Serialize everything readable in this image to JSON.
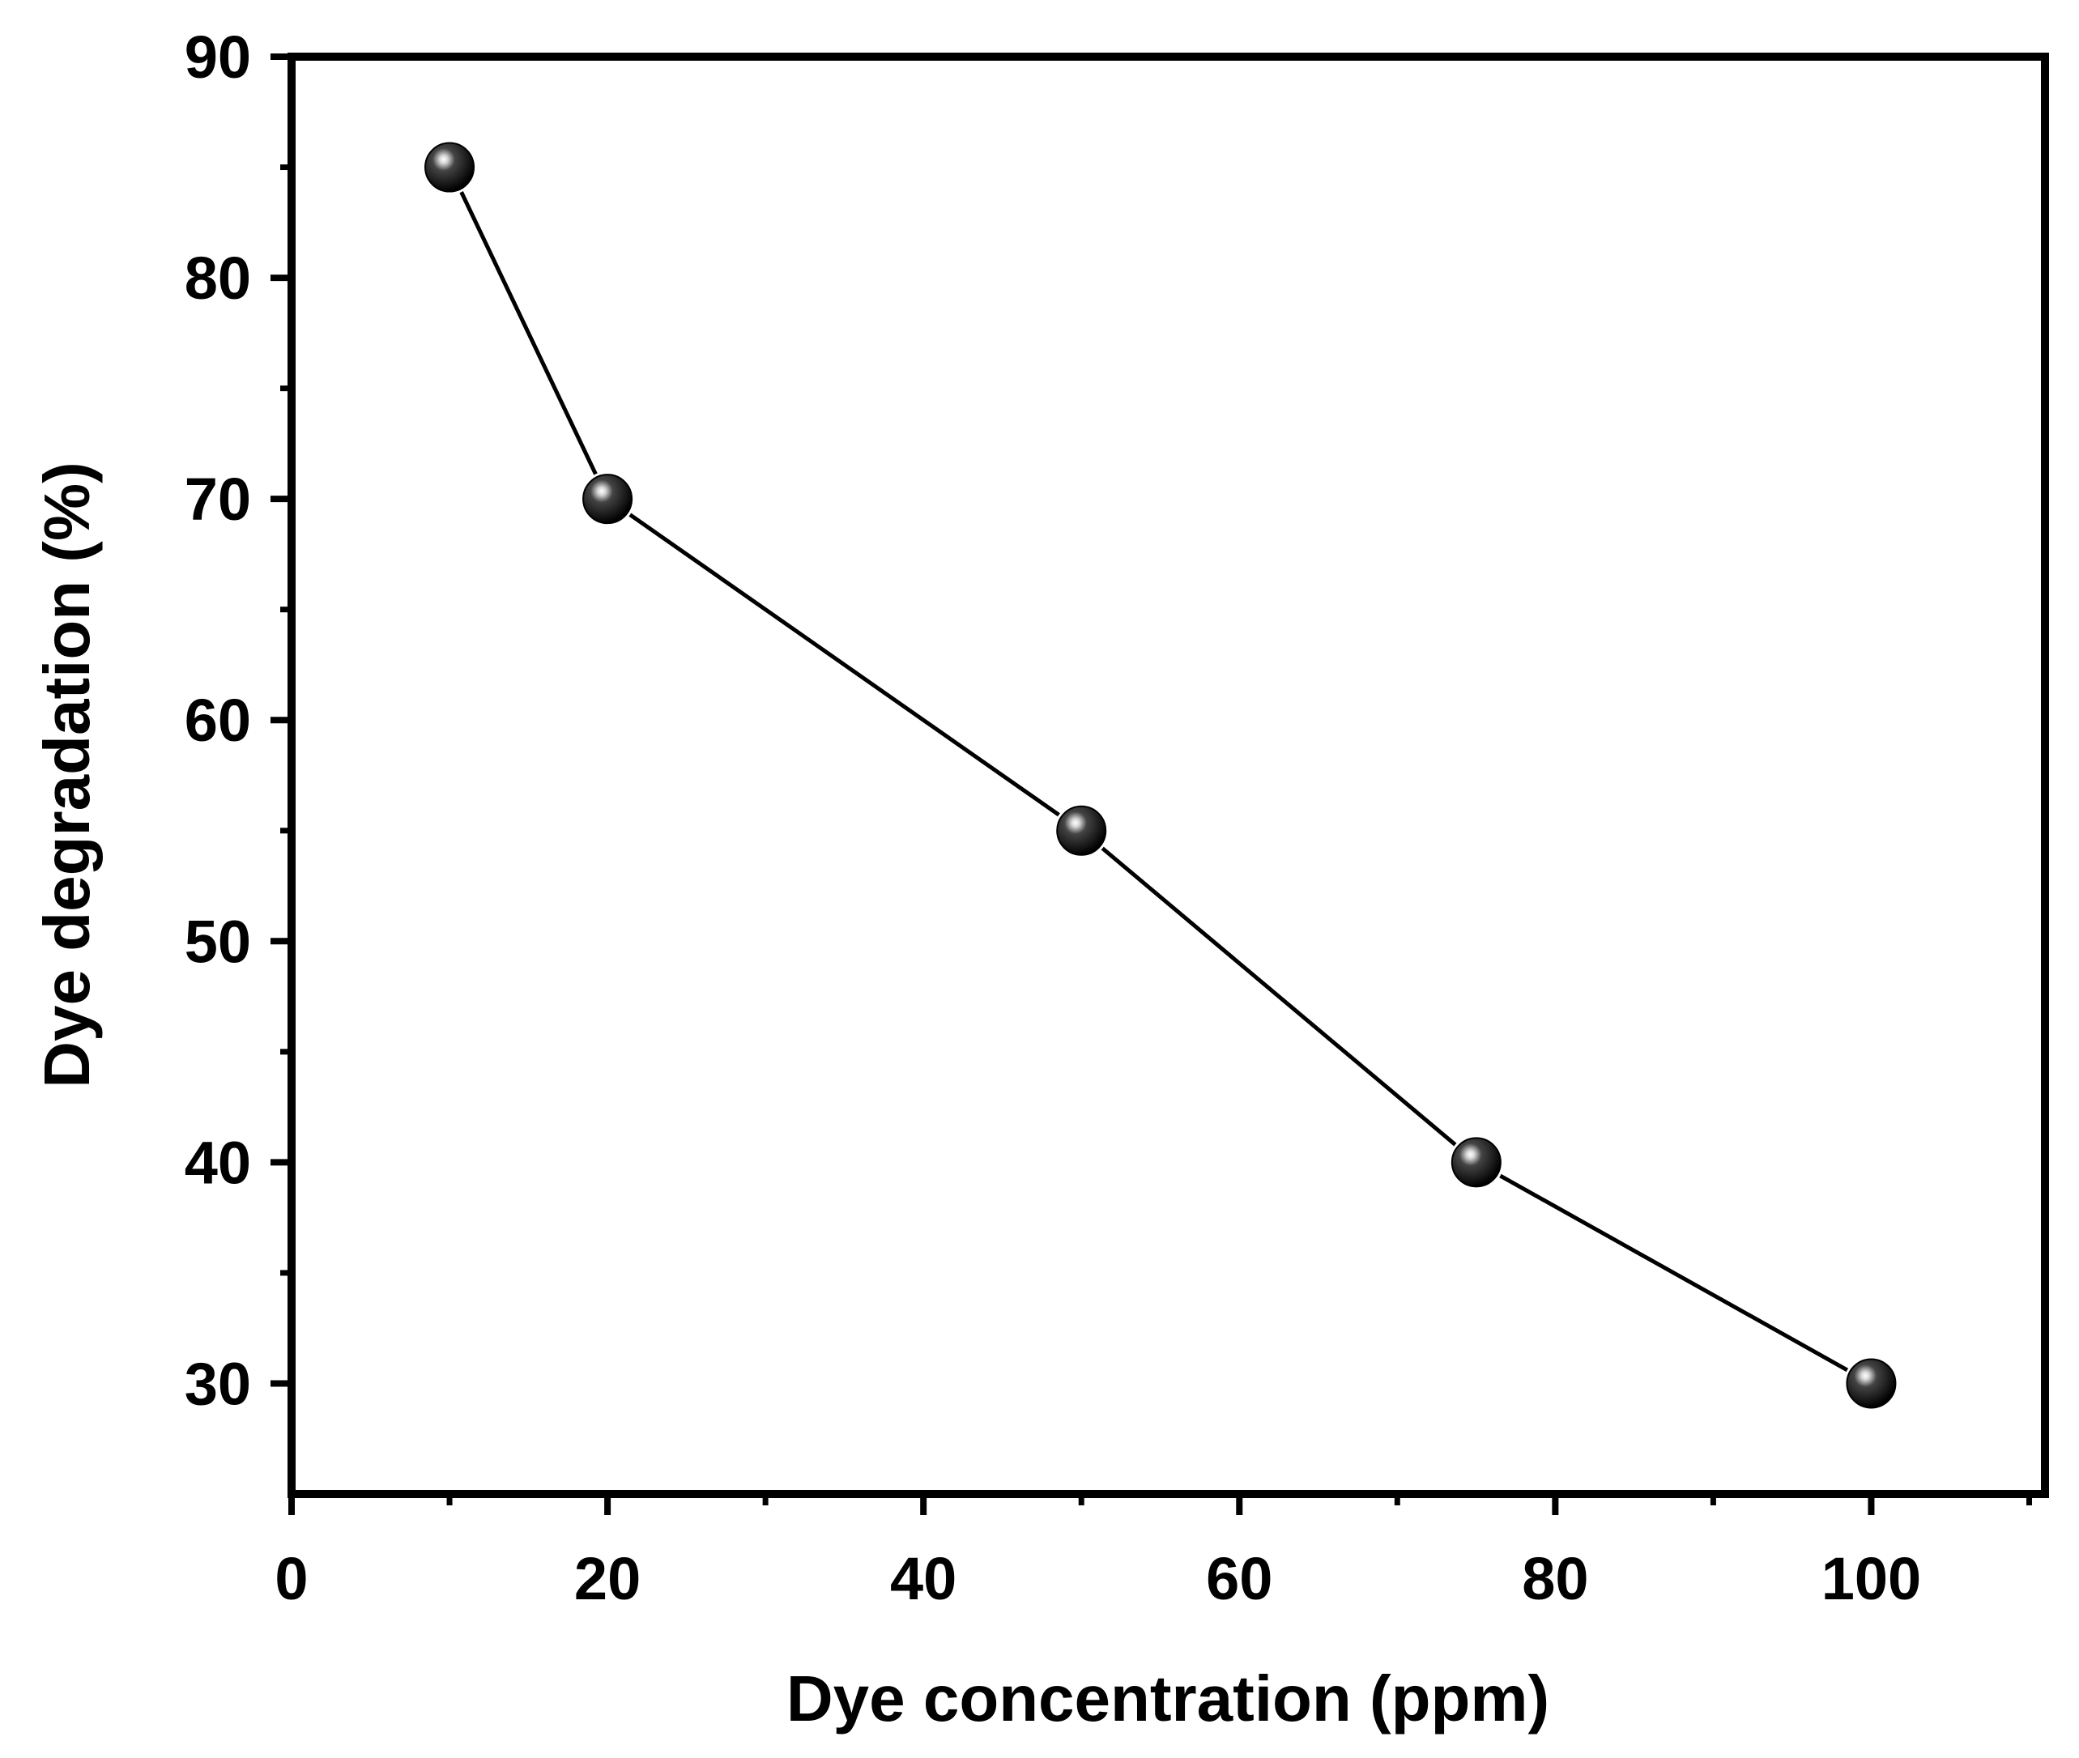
{
  "chart_data": {
    "type": "line",
    "title": "",
    "xlabel": "Dye concentration (ppm)",
    "ylabel": "Dye degradation (%)",
    "xlim": [
      0,
      111
    ],
    "ylim": [
      25,
      90
    ],
    "x_ticks": [
      0,
      20,
      40,
      60,
      80,
      100
    ],
    "x_tick_labels": [
      "0",
      "20",
      "40",
      "60",
      "80",
      "100"
    ],
    "y_ticks": [
      30,
      40,
      50,
      60,
      70,
      80,
      90
    ],
    "y_tick_labels": [
      "30",
      "40",
      "50",
      "60",
      "70",
      "80",
      "90"
    ],
    "grid": false,
    "series": [
      {
        "name": "Dye degradation",
        "x": [
          10,
          20,
          50,
          75,
          100
        ],
        "y": [
          85,
          70,
          55,
          40,
          30
        ]
      }
    ],
    "colors": {
      "line": "#000000",
      "marker": "#000000",
      "frame": "#000000",
      "background": "#ffffff"
    }
  }
}
